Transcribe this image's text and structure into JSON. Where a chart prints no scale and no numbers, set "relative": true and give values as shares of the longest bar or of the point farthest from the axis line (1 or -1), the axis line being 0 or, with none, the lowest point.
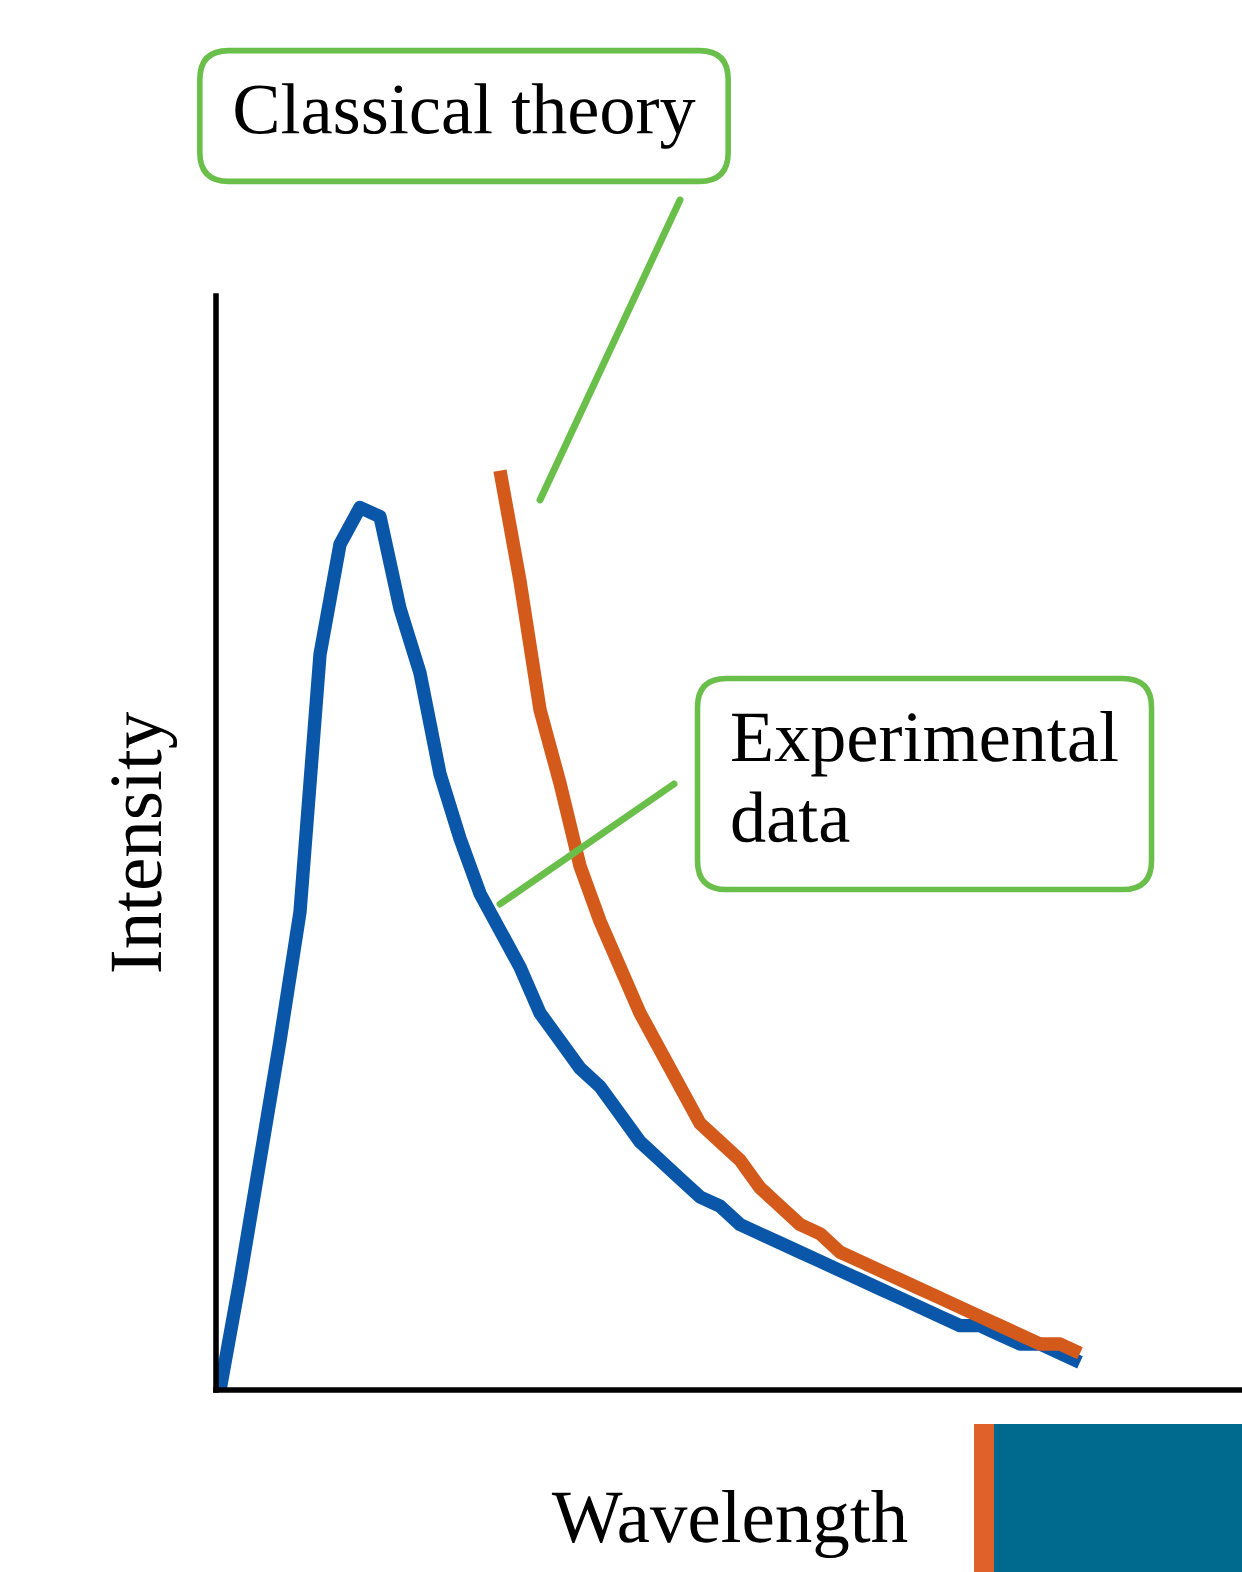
{
  "chart_data": {
    "type": "line",
    "relative": true,
    "xlabel": "Wavelength",
    "ylabel": "Intensity",
    "categories": [
      null,
      null,
      null,
      null,
      null,
      null,
      null,
      null,
      null,
      null,
      null,
      null,
      null,
      null,
      null,
      null,
      null,
      null,
      null,
      null,
      null,
      null,
      null,
      null,
      null,
      null,
      null,
      null,
      null,
      null,
      null,
      null,
      null,
      null,
      null,
      null,
      null,
      null,
      null,
      null,
      null,
      null,
      null,
      null
    ],
    "series": [
      {
        "color": "#0a56a8",
        "values": [
          0,
          0.12,
          0.25,
          0.38,
          0.52,
          0.8,
          0.92,
          0.96,
          0.95,
          0.85,
          0.78,
          0.67,
          0.6,
          0.54,
          0.5,
          0.46,
          0.41,
          0.38,
          0.35,
          0.33,
          0.3,
          0.27,
          0.25,
          0.23,
          0.21,
          0.2,
          0.18,
          0.17,
          0.16,
          0.15,
          0.14,
          0.13,
          0.12,
          0.11,
          0.1,
          0.09,
          0.08,
          0.07,
          0.07,
          0.06,
          0.05,
          0.05,
          0.04,
          0.03
        ]
      },
      {
        "color": "#d45a1c",
        "values": [
          null,
          null,
          null,
          null,
          null,
          null,
          null,
          null,
          null,
          null,
          null,
          null,
          null,
          null,
          1,
          0.88,
          0.74,
          0.66,
          0.57,
          0.51,
          0.46,
          0.41,
          0.37,
          0.33,
          0.29,
          0.27,
          0.25,
          0.22,
          0.2,
          0.18,
          0.17,
          0.15,
          0.14,
          0.13,
          0.12,
          0.11,
          0.1,
          0.09,
          0.08,
          0.07,
          0.06,
          0.05,
          0.05,
          0.04
        ]
      }
    ],
    "annotations": [
      "Classical theory",
      "Experimental data"
    ]
  }
}
